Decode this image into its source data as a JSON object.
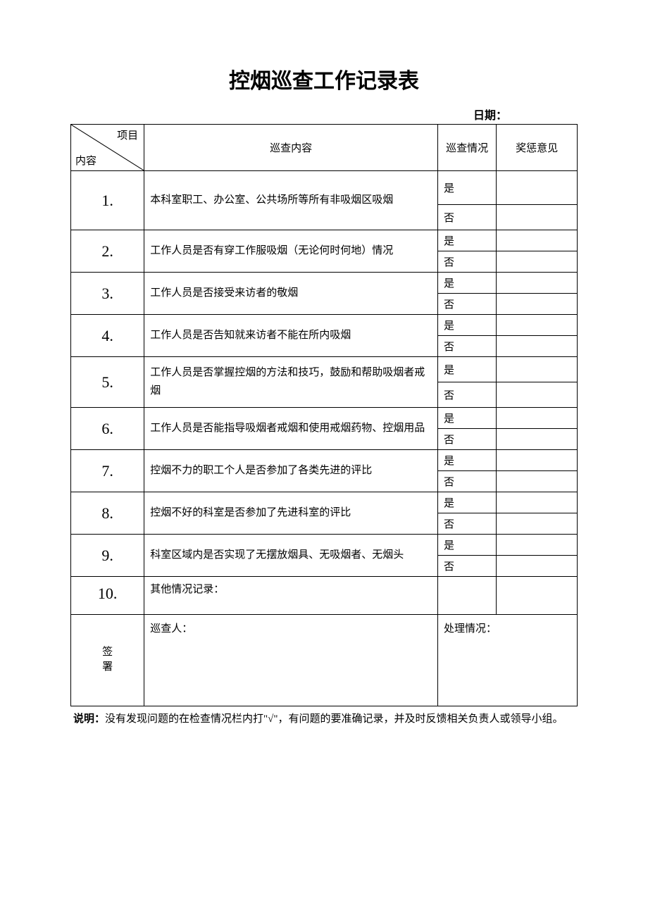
{
  "title": "控烟巡查工作记录表",
  "date_label": "日期：",
  "header": {
    "diag_top": "项目",
    "diag_bottom": "内容",
    "col_content": "巡查内容",
    "col_status": "巡查情况",
    "col_opinion": "奖惩意见"
  },
  "status_yes": "是",
  "status_no": "否",
  "rows": [
    {
      "num": "1.",
      "content": "本科室职工、办公室、公共场所等所有非吸烟区吸烟"
    },
    {
      "num": "2.",
      "content": "工作人员是否有穿工作服吸烟（无论何时何地）情况"
    },
    {
      "num": "3.",
      "content": "工作人员是否接受来访者的敬烟"
    },
    {
      "num": "4.",
      "content": "工作人员是否告知就来访者不能在所内吸烟"
    },
    {
      "num": "5.",
      "content": "工作人员是否掌握控烟的方法和技巧，鼓励和帮助吸烟者戒烟"
    },
    {
      "num": "6.",
      "content": "工作人员是否能指导吸烟者戒烟和使用戒烟药物、控烟用品"
    },
    {
      "num": "7.",
      "content": "控烟不力的职工个人是否参加了各类先进的评比"
    },
    {
      "num": "8.",
      "content": "控烟不好的科室是否参加了先进科室的评比"
    },
    {
      "num": "9.",
      "content": "科室区域内是否实现了无摆放烟具、无吸烟者、无烟头"
    }
  ],
  "row10": {
    "num": "10.",
    "content": "其他情况记录："
  },
  "sign": {
    "label": "签署",
    "inspector": "巡查人：",
    "handling": "处理情况："
  },
  "note": {
    "label": "说明：",
    "text": "没有发现问题的在检查情况栏内打\"√\"，有问题的要准确记录，并及时反馈相关负责人或领导小组。"
  }
}
